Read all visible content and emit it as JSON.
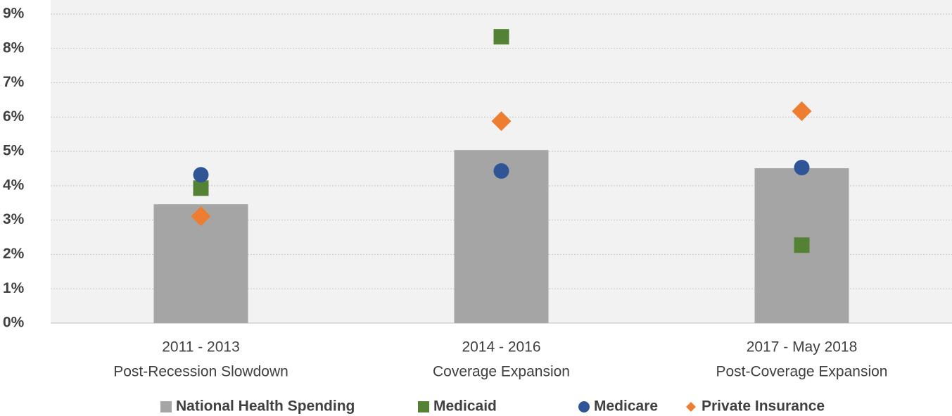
{
  "chart_data": {
    "type": "bar",
    "categories": [
      [
        "2011 - 2013",
        "Post-Recession Slowdown"
      ],
      [
        "2014 - 2016",
        "Coverage Expansion"
      ],
      [
        "2017 - May 2018",
        "Post-Coverage Expansion"
      ]
    ],
    "series": [
      {
        "name": "National Health Spending",
        "color": "#a5a5a5",
        "marker": "bar",
        "values": [
          3.46,
          5.04,
          4.51
        ]
      },
      {
        "name": "Medicaid",
        "color": "#548235",
        "marker": "square",
        "values": [
          3.93,
          8.34,
          2.27
        ]
      },
      {
        "name": "Medicare",
        "color": "#2f5597",
        "marker": "circle",
        "values": [
          4.32,
          4.43,
          4.53
        ]
      },
      {
        "name": "Private Insurance",
        "color": "#ed7d31",
        "marker": "diamond",
        "values": [
          3.11,
          5.88,
          6.17
        ]
      }
    ],
    "ylim": [
      0,
      9
    ],
    "yticks": [
      {
        "value": 0,
        "label": "0%"
      },
      {
        "value": 1,
        "label": "1%"
      },
      {
        "value": 2,
        "label": "2%"
      },
      {
        "value": 3,
        "label": "3%"
      },
      {
        "value": 4,
        "label": "4%"
      },
      {
        "value": 5,
        "label": "5%"
      },
      {
        "value": 6,
        "label": "6%"
      },
      {
        "value": 7,
        "label": "7%"
      },
      {
        "value": 8,
        "label": "8%"
      },
      {
        "value": 9,
        "label": "9%"
      }
    ],
    "grid": true,
    "legend": "bottom"
  }
}
